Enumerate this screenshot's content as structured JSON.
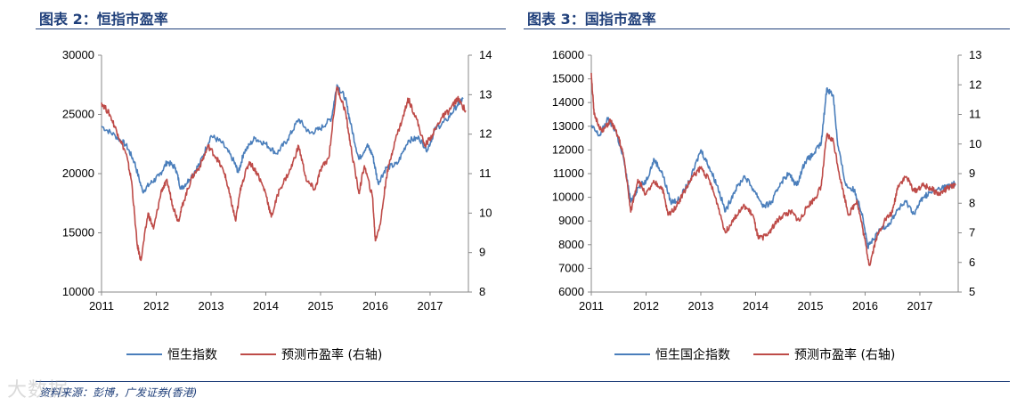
{
  "colors": {
    "blue": "#4a7ebb",
    "red": "#be4b48",
    "accent": "#1f3f7a"
  },
  "left_title": "图表 2：恒指市盈率",
  "right_title": "图表 3：国指市盈率",
  "source": "资料来源：彭博，广发证券(香港)",
  "watermark": "大数据",
  "chart_data": [
    {
      "type": "line",
      "title": "恒指市盈率",
      "x": [
        2011,
        2012,
        2013,
        2014,
        2015,
        2016,
        2017
      ],
      "x_tick_labels": [
        "2011",
        "2012",
        "2013",
        "2014",
        "2015",
        "2016",
        "2017"
      ],
      "xlim": [
        2011,
        2017.7
      ],
      "y_left_ticks": [
        "30000",
        "25000",
        "20000",
        "15000",
        "10000"
      ],
      "ylim_left": [
        10000,
        30000
      ],
      "y_right_ticks": [
        "14",
        "13",
        "12",
        "11",
        "10",
        "9",
        "8"
      ],
      "ylim_right": [
        8,
        14
      ],
      "series": [
        {
          "name": "恒生指数",
          "axis": "left",
          "points": [
            [
              2011.0,
              24000
            ],
            [
              2011.25,
              23200
            ],
            [
              2011.45,
              22400
            ],
            [
              2011.6,
              21000
            ],
            [
              2011.75,
              18500
            ],
            [
              2011.9,
              19200
            ],
            [
              2012.05,
              19800
            ],
            [
              2012.2,
              21000
            ],
            [
              2012.35,
              20500
            ],
            [
              2012.45,
              18700
            ],
            [
              2012.6,
              19500
            ],
            [
              2012.8,
              20900
            ],
            [
              2013.0,
              23200
            ],
            [
              2013.2,
              22600
            ],
            [
              2013.4,
              21200
            ],
            [
              2013.5,
              20100
            ],
            [
              2013.6,
              21800
            ],
            [
              2013.8,
              23000
            ],
            [
              2014.0,
              22500
            ],
            [
              2014.2,
              21700
            ],
            [
              2014.4,
              22900
            ],
            [
              2014.6,
              24600
            ],
            [
              2014.8,
              23400
            ],
            [
              2015.0,
              23800
            ],
            [
              2015.2,
              24700
            ],
            [
              2015.3,
              27500
            ],
            [
              2015.45,
              26400
            ],
            [
              2015.55,
              24200
            ],
            [
              2015.7,
              21200
            ],
            [
              2015.85,
              22400
            ],
            [
              2015.95,
              21600
            ],
            [
              2016.05,
              19200
            ],
            [
              2016.2,
              20500
            ],
            [
              2016.4,
              20800
            ],
            [
              2016.6,
              22800
            ],
            [
              2016.8,
              23000
            ],
            [
              2016.95,
              22000
            ],
            [
              2017.1,
              23800
            ],
            [
              2017.3,
              24500
            ],
            [
              2017.5,
              25800
            ],
            [
              2017.6,
              26300
            ]
          ]
        },
        {
          "name": "预测市盈率 (右轴)",
          "axis": "right",
          "points": [
            [
              2011.0,
              12.8
            ],
            [
              2011.15,
              12.5
            ],
            [
              2011.3,
              12.0
            ],
            [
              2011.45,
              11.5
            ],
            [
              2011.55,
              10.8
            ],
            [
              2011.65,
              9.2
            ],
            [
              2011.72,
              8.8
            ],
            [
              2011.85,
              10.0
            ],
            [
              2011.95,
              9.6
            ],
            [
              2012.1,
              10.6
            ],
            [
              2012.2,
              10.8
            ],
            [
              2012.3,
              10.2
            ],
            [
              2012.4,
              9.8
            ],
            [
              2012.5,
              10.3
            ],
            [
              2012.65,
              10.9
            ],
            [
              2012.8,
              11.2
            ],
            [
              2012.95,
              11.7
            ],
            [
              2013.1,
              11.4
            ],
            [
              2013.25,
              11.0
            ],
            [
              2013.35,
              10.4
            ],
            [
              2013.45,
              9.8
            ],
            [
              2013.55,
              10.7
            ],
            [
              2013.7,
              11.3
            ],
            [
              2013.85,
              11.0
            ],
            [
              2014.0,
              10.5
            ],
            [
              2014.1,
              9.9
            ],
            [
              2014.25,
              10.6
            ],
            [
              2014.45,
              11.1
            ],
            [
              2014.6,
              11.7
            ],
            [
              2014.75,
              10.8
            ],
            [
              2014.9,
              10.6
            ],
            [
              2015.0,
              11.1
            ],
            [
              2015.15,
              11.4
            ],
            [
              2015.3,
              13.2
            ],
            [
              2015.45,
              12.6
            ],
            [
              2015.55,
              11.7
            ],
            [
              2015.7,
              10.5
            ],
            [
              2015.8,
              11.2
            ],
            [
              2015.95,
              10.4
            ],
            [
              2016.0,
              9.3
            ],
            [
              2016.1,
              9.8
            ],
            [
              2016.2,
              10.9
            ],
            [
              2016.35,
              11.8
            ],
            [
              2016.5,
              12.4
            ],
            [
              2016.6,
              12.9
            ],
            [
              2016.75,
              12.4
            ],
            [
              2016.9,
              11.7
            ],
            [
              2017.05,
              12.0
            ],
            [
              2017.2,
              12.4
            ],
            [
              2017.35,
              12.6
            ],
            [
              2017.5,
              12.9
            ],
            [
              2017.65,
              12.6
            ]
          ]
        }
      ],
      "legend": [
        "恒生指数",
        "预测市盈率 (右轴)"
      ]
    },
    {
      "type": "line",
      "title": "国指市盈率",
      "x": [
        2011,
        2012,
        2013,
        2014,
        2015,
        2016,
        2017
      ],
      "x_tick_labels": [
        "2011",
        "2012",
        "2013",
        "2014",
        "2015",
        "2016",
        "2017"
      ],
      "xlim": [
        2011,
        2017.7
      ],
      "y_left_ticks": [
        "16000",
        "15000",
        "14000",
        "13000",
        "12000",
        "11000",
        "10000",
        "9000",
        "8000",
        "7000",
        "6000"
      ],
      "ylim_left": [
        6000,
        16000
      ],
      "y_right_ticks": [
        "13",
        "12",
        "11",
        "10",
        "9",
        "8",
        "7",
        "6",
        "5"
      ],
      "ylim_right": [
        5,
        13
      ],
      "series": [
        {
          "name": "恒生国企指数",
          "axis": "left",
          "points": [
            [
              2011.0,
              13000
            ],
            [
              2011.15,
              12600
            ],
            [
              2011.3,
              13300
            ],
            [
              2011.45,
              12800
            ],
            [
              2011.6,
              11500
            ],
            [
              2011.72,
              9800
            ],
            [
              2011.85,
              10400
            ],
            [
              2012.0,
              10700
            ],
            [
              2012.15,
              11600
            ],
            [
              2012.3,
              11000
            ],
            [
              2012.45,
              9800
            ],
            [
              2012.6,
              9900
            ],
            [
              2012.8,
              10700
            ],
            [
              2013.0,
              12000
            ],
            [
              2013.15,
              11300
            ],
            [
              2013.3,
              10500
            ],
            [
              2013.45,
              9400
            ],
            [
              2013.6,
              10200
            ],
            [
              2013.8,
              10900
            ],
            [
              2014.0,
              10200
            ],
            [
              2014.15,
              9600
            ],
            [
              2014.3,
              9800
            ],
            [
              2014.45,
              10600
            ],
            [
              2014.6,
              11000
            ],
            [
              2014.75,
              10500
            ],
            [
              2014.9,
              11500
            ],
            [
              2015.05,
              11800
            ],
            [
              2015.2,
              12300
            ],
            [
              2015.3,
              14600
            ],
            [
              2015.42,
              14300
            ],
            [
              2015.5,
              12200
            ],
            [
              2015.65,
              10500
            ],
            [
              2015.8,
              10300
            ],
            [
              2015.95,
              9300
            ],
            [
              2016.05,
              7900
            ],
            [
              2016.15,
              8200
            ],
            [
              2016.3,
              8700
            ],
            [
              2016.45,
              8900
            ],
            [
              2016.6,
              9500
            ],
            [
              2016.75,
              9800
            ],
            [
              2016.9,
              9300
            ],
            [
              2017.05,
              10000
            ],
            [
              2017.2,
              10200
            ],
            [
              2017.4,
              10400
            ],
            [
              2017.55,
              10500
            ],
            [
              2017.65,
              10600
            ]
          ]
        },
        {
          "name": "预测市盈率 (右轴)",
          "axis": "right",
          "points": [
            [
              2011.0,
              12.4
            ],
            [
              2011.05,
              11.0
            ],
            [
              2011.2,
              10.4
            ],
            [
              2011.35,
              10.8
            ],
            [
              2011.5,
              10.2
            ],
            [
              2011.6,
              9.5
            ],
            [
              2011.72,
              7.7
            ],
            [
              2011.85,
              8.8
            ],
            [
              2012.0,
              8.3
            ],
            [
              2012.15,
              8.7
            ],
            [
              2012.3,
              8.5
            ],
            [
              2012.4,
              7.6
            ],
            [
              2012.55,
              7.9
            ],
            [
              2012.7,
              8.4
            ],
            [
              2012.85,
              8.9
            ],
            [
              2013.0,
              9.2
            ],
            [
              2013.15,
              8.8
            ],
            [
              2013.3,
              8.0
            ],
            [
              2013.45,
              7.0
            ],
            [
              2013.6,
              7.5
            ],
            [
              2013.8,
              7.9
            ],
            [
              2013.95,
              7.6
            ],
            [
              2014.05,
              6.8
            ],
            [
              2014.2,
              6.9
            ],
            [
              2014.35,
              7.3
            ],
            [
              2014.5,
              7.6
            ],
            [
              2014.65,
              7.7
            ],
            [
              2014.8,
              7.4
            ],
            [
              2014.95,
              7.9
            ],
            [
              2015.1,
              8.2
            ],
            [
              2015.2,
              8.6
            ],
            [
              2015.3,
              10.3
            ],
            [
              2015.42,
              10.1
            ],
            [
              2015.55,
              8.8
            ],
            [
              2015.7,
              7.6
            ],
            [
              2015.85,
              8.1
            ],
            [
              2015.95,
              7.2
            ],
            [
              2016.08,
              5.9
            ],
            [
              2016.2,
              6.8
            ],
            [
              2016.35,
              7.4
            ],
            [
              2016.5,
              7.7
            ],
            [
              2016.6,
              8.6
            ],
            [
              2016.75,
              8.9
            ],
            [
              2016.9,
              8.4
            ],
            [
              2017.05,
              8.6
            ],
            [
              2017.2,
              8.5
            ],
            [
              2017.35,
              8.3
            ],
            [
              2017.5,
              8.5
            ],
            [
              2017.65,
              8.6
            ]
          ]
        }
      ],
      "legend": [
        "恒生国企指数",
        "预测市盈率 (右轴)"
      ]
    }
  ]
}
